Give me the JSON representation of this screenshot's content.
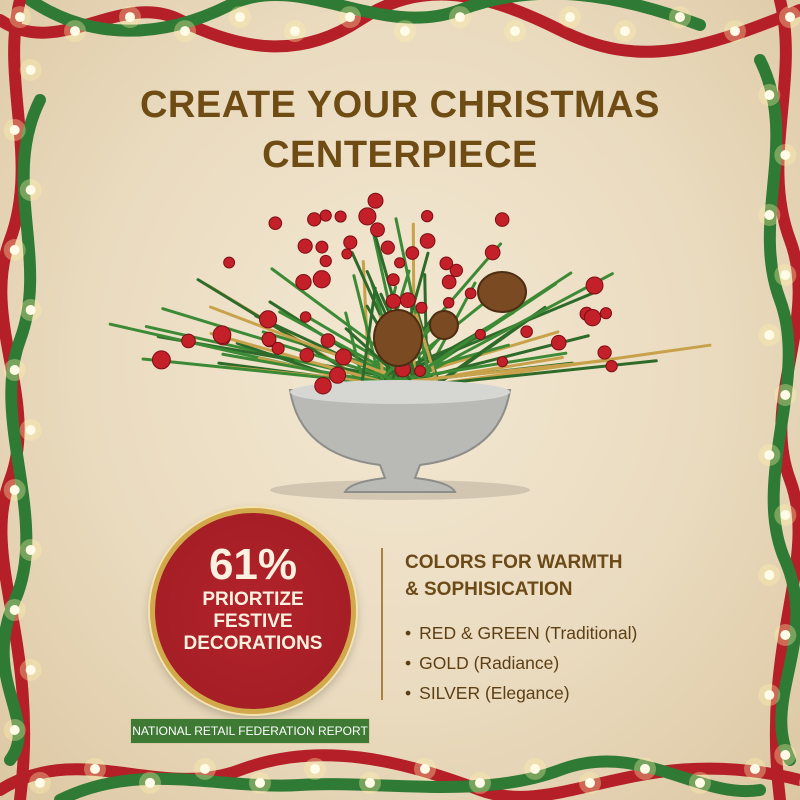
{
  "title": {
    "line1": "CREATE YOUR CHRISTMAS",
    "line2": "CENTERPIECE"
  },
  "stat": {
    "value": "61%",
    "lines": [
      "PRIORTIZE",
      "FESTIVE",
      "DECORATIONS"
    ]
  },
  "source_badge": "NATIONAL RETAIL FEDERATION REPORT",
  "colors_section": {
    "heading_line1": "COLORS FOR WARMTH",
    "heading_line2": "& SOPHISICATION",
    "items": [
      "RED & GREEN (Traditional)",
      "GOLD (Radiance)",
      "SILVER (Elegance)"
    ]
  },
  "palette": {
    "title": "#6e4c14",
    "red": "#a01c24",
    "green": "#3f7a34",
    "gold": "#d2a94a",
    "background": "#eadbbf"
  }
}
